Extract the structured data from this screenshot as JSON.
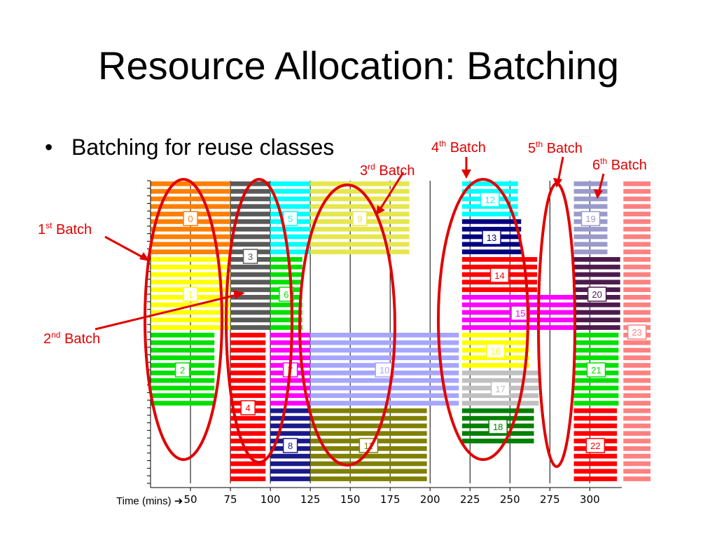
{
  "title": "Resource Allocation: Batching",
  "bullet": "Batching for reuse classes",
  "batch_labels": [
    {
      "id": "b1",
      "num": "1",
      "sup": "st",
      "text": " Batch"
    },
    {
      "id": "b2",
      "num": "2",
      "sup": "nd",
      "text": " Batch"
    },
    {
      "id": "b3",
      "num": "3",
      "sup": "rd",
      "text": " Batch"
    },
    {
      "id": "b4",
      "num": "4",
      "sup": "th",
      "text": " Batch"
    },
    {
      "id": "b5",
      "num": "5",
      "sup": "th",
      "text": " Batch"
    },
    {
      "id": "b6",
      "num": "6",
      "sup": "th",
      "text": " Batch"
    }
  ],
  "colors": {
    "batch_annotation": "#e00000",
    "gridline": "#000000"
  },
  "chart_data": {
    "type": "gantt",
    "x_title": "Time (mins)",
    "xlim": [
      25,
      320
    ],
    "x_ticks": [
      50,
      75,
      100,
      125,
      150,
      175,
      200,
      225,
      250,
      275,
      300
    ],
    "x_tick_labels": [
      "50",
      "75",
      "100",
      "125",
      "150",
      "175",
      "200",
      "225",
      "250",
      "275",
      "300"
    ],
    "grid": true,
    "tasks": [
      {
        "label": "0",
        "start": 25,
        "end": 75,
        "row_start": 0,
        "row_end": 10,
        "color": "#ff7f00"
      },
      {
        "label": "1",
        "start": 25,
        "end": 75,
        "row_start": 10,
        "row_end": 20,
        "color": "#ffff00"
      },
      {
        "label": "2",
        "start": 25,
        "end": 65,
        "row_start": 20,
        "row_end": 30,
        "color": "#00e000"
      },
      {
        "label": "3",
        "start": 75,
        "end": 100,
        "row_start": 0,
        "row_end": 20,
        "color": "#5a5a5a"
      },
      {
        "label": "4",
        "start": 75,
        "end": 97,
        "row_start": 20,
        "row_end": 40,
        "color": "#ff0000"
      },
      {
        "label": "5",
        "start": 100,
        "end": 125,
        "row_start": 0,
        "row_end": 10,
        "color": "#00ffff"
      },
      {
        "label": "6",
        "start": 100,
        "end": 120,
        "row_start": 10,
        "row_end": 20,
        "color": "#00e000"
      },
      {
        "label": "7",
        "start": 100,
        "end": 125,
        "row_start": 20,
        "row_end": 30,
        "color": "#ff00ff"
      },
      {
        "label": "8",
        "start": 100,
        "end": 125,
        "row_start": 30,
        "row_end": 40,
        "color": "#1a1a8c"
      },
      {
        "label": "9",
        "start": 125,
        "end": 187,
        "row_start": 0,
        "row_end": 10,
        "color": "#e6e64d"
      },
      {
        "label": "10",
        "start": 125,
        "end": 218,
        "row_start": 20,
        "row_end": 30,
        "color": "#a6a6ff"
      },
      {
        "label": "11",
        "start": 125,
        "end": 198,
        "row_start": 30,
        "row_end": 40,
        "color": "#808000"
      },
      {
        "label": "12",
        "start": 220,
        "end": 255,
        "row_start": 0,
        "row_end": 5,
        "color": "#00ffff"
      },
      {
        "label": "13",
        "start": 220,
        "end": 257,
        "row_start": 5,
        "row_end": 10,
        "color": "#000080"
      },
      {
        "label": "14",
        "start": 220,
        "end": 267,
        "row_start": 10,
        "row_end": 15,
        "color": "#ff0000"
      },
      {
        "label": "15",
        "start": 220,
        "end": 293,
        "row_start": 15,
        "row_end": 20,
        "color": "#ff00ff"
      },
      {
        "label": "16",
        "start": 220,
        "end": 262,
        "row_start": 20,
        "row_end": 25,
        "color": "#ffff00"
      },
      {
        "label": "17",
        "start": 220,
        "end": 268,
        "row_start": 25,
        "row_end": 30,
        "color": "#c0c0c0"
      },
      {
        "label": "18",
        "start": 220,
        "end": 265,
        "row_start": 30,
        "row_end": 35,
        "color": "#008000"
      },
      {
        "label": "19",
        "start": 290,
        "end": 311,
        "row_start": 0,
        "row_end": 10,
        "color": "#9a9acd"
      },
      {
        "label": "20",
        "start": 290,
        "end": 319,
        "row_start": 10,
        "row_end": 20,
        "color": "#4d1a4d"
      },
      {
        "label": "21",
        "start": 290,
        "end": 318,
        "row_start": 20,
        "row_end": 30,
        "color": "#00e000"
      },
      {
        "label": "22",
        "start": 290,
        "end": 317,
        "row_start": 30,
        "row_end": 40,
        "color": "#ff0000"
      },
      {
        "label": "23",
        "start": 321,
        "end": 338,
        "row_start": 0,
        "row_end": 40,
        "color": "#ff8080"
      }
    ]
  }
}
